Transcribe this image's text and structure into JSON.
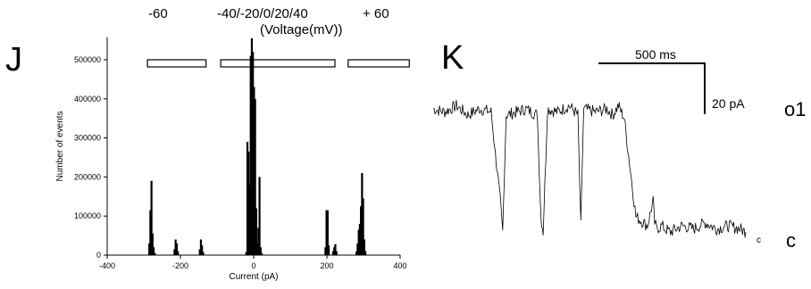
{
  "panel_j": {
    "letter": "J",
    "voltage_groups": [
      "-60",
      "-40/-20/0/20/40",
      "+ 60"
    ],
    "voltage_unit_label": "(Voltage(mV))"
  },
  "panel_k": {
    "letter": "K",
    "time_scale_label": "500 ms",
    "current_scale_label": "20 pA",
    "open_state_label": "o1",
    "closed_state_label": "c",
    "closed_marker_small": "c"
  },
  "chart_data": [
    {
      "type": "bar",
      "title": "",
      "xlabel": "Current (pA)",
      "ylabel": "Number of events",
      "xlim": [
        -400,
        400
      ],
      "ylim": [
        0,
        600000
      ],
      "x_ticks": [
        -400,
        -200,
        0,
        200,
        400
      ],
      "y_ticks": [
        0,
        100000,
        200000,
        300000,
        400000,
        500000
      ],
      "grid": false,
      "legend": "none",
      "bar_color": "#000000",
      "x": [
        -285,
        -282,
        -279,
        -276,
        -273,
        -270,
        -216,
        -213,
        -210,
        -207,
        -147,
        -144,
        -141,
        -138,
        -20,
        -17,
        -14,
        -11,
        -8,
        -5,
        -2,
        1,
        4,
        7,
        10,
        13,
        16,
        19,
        22,
        196,
        199,
        202,
        205,
        217,
        220,
        223,
        226,
        281,
        284,
        287,
        290,
        293,
        296,
        299,
        302,
        305
      ],
      "values": [
        30000,
        115000,
        190000,
        55000,
        20000,
        5000,
        15000,
        40000,
        30000,
        10000,
        15000,
        40000,
        25000,
        8000,
        8000,
        290000,
        265000,
        180000,
        510000,
        555000,
        520000,
        430000,
        400000,
        120000,
        30000,
        70000,
        200000,
        20000,
        5000,
        20000,
        115000,
        115000,
        25000,
        10000,
        20000,
        28000,
        10000,
        10000,
        30000,
        65000,
        80000,
        125000,
        210000,
        145000,
        40000,
        10000
      ],
      "voltage_bars": [
        {
          "label": "-60",
          "x_range": [
            -290,
            -130
          ]
        },
        {
          "label": "-40/-20/0/20/40",
          "x_range": [
            -90,
            222
          ]
        },
        {
          "label": "+ 60",
          "x_range": [
            258,
            425
          ]
        }
      ]
    },
    {
      "type": "line",
      "title": "",
      "xlabel": "",
      "ylabel": "",
      "grid": false,
      "legend": "none",
      "line_color": "#000000",
      "x_ms": [
        0,
        40,
        80,
        120,
        160,
        200,
        232,
        240,
        252,
        290,
        320,
        360,
        372,
        380,
        395,
        430,
        470,
        500,
        510,
        520,
        560,
        600,
        620,
        640,
        660,
        700,
        740,
        760,
        765,
        772,
        790,
        800,
        820,
        860,
        900,
        940,
        980,
        1020,
        1060,
        1080
      ],
      "values_pA": [
        40,
        39,
        41,
        38,
        40,
        39,
        10,
        0,
        38,
        39,
        40,
        38,
        5,
        0,
        40,
        39,
        41,
        38,
        2,
        40,
        39,
        40,
        38,
        41,
        37,
        5,
        2,
        10,
        3,
        1,
        2,
        1,
        0,
        2,
        1,
        3,
        1,
        2,
        1,
        0
      ]
    }
  ]
}
